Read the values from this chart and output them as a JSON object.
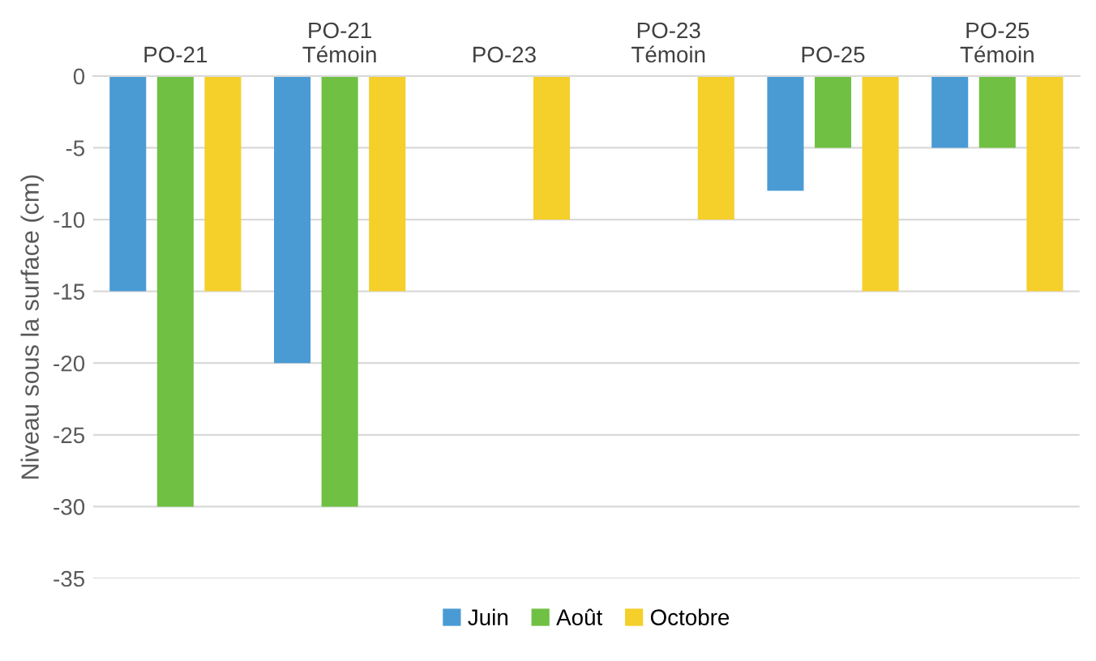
{
  "chart_data": {
    "type": "bar",
    "ylabel": "Niveau sous la surface (cm)",
    "categories": [
      "PO-21",
      "PO-21\nTémoin",
      "PO-23",
      "PO-23\nTémoin",
      "PO-25",
      "PO-25\nTémoin"
    ],
    "series": [
      {
        "name": "Juin",
        "color": "#4a9bd4",
        "values": [
          -15,
          -20,
          null,
          null,
          -8,
          -5
        ]
      },
      {
        "name": "Août",
        "color": "#70c043",
        "values": [
          -30,
          -30,
          null,
          null,
          -5,
          -5
        ]
      },
      {
        "name": "Octobre",
        "color": "#f5cf2a",
        "values": [
          -15,
          -15,
          -10,
          -10,
          -15,
          -15
        ]
      }
    ],
    "ylim": [
      -35,
      0
    ],
    "yticks": [
      -35,
      -30,
      -25,
      -20,
      -15,
      -10,
      -5,
      0
    ],
    "grid": "y",
    "legend": "bottom"
  }
}
